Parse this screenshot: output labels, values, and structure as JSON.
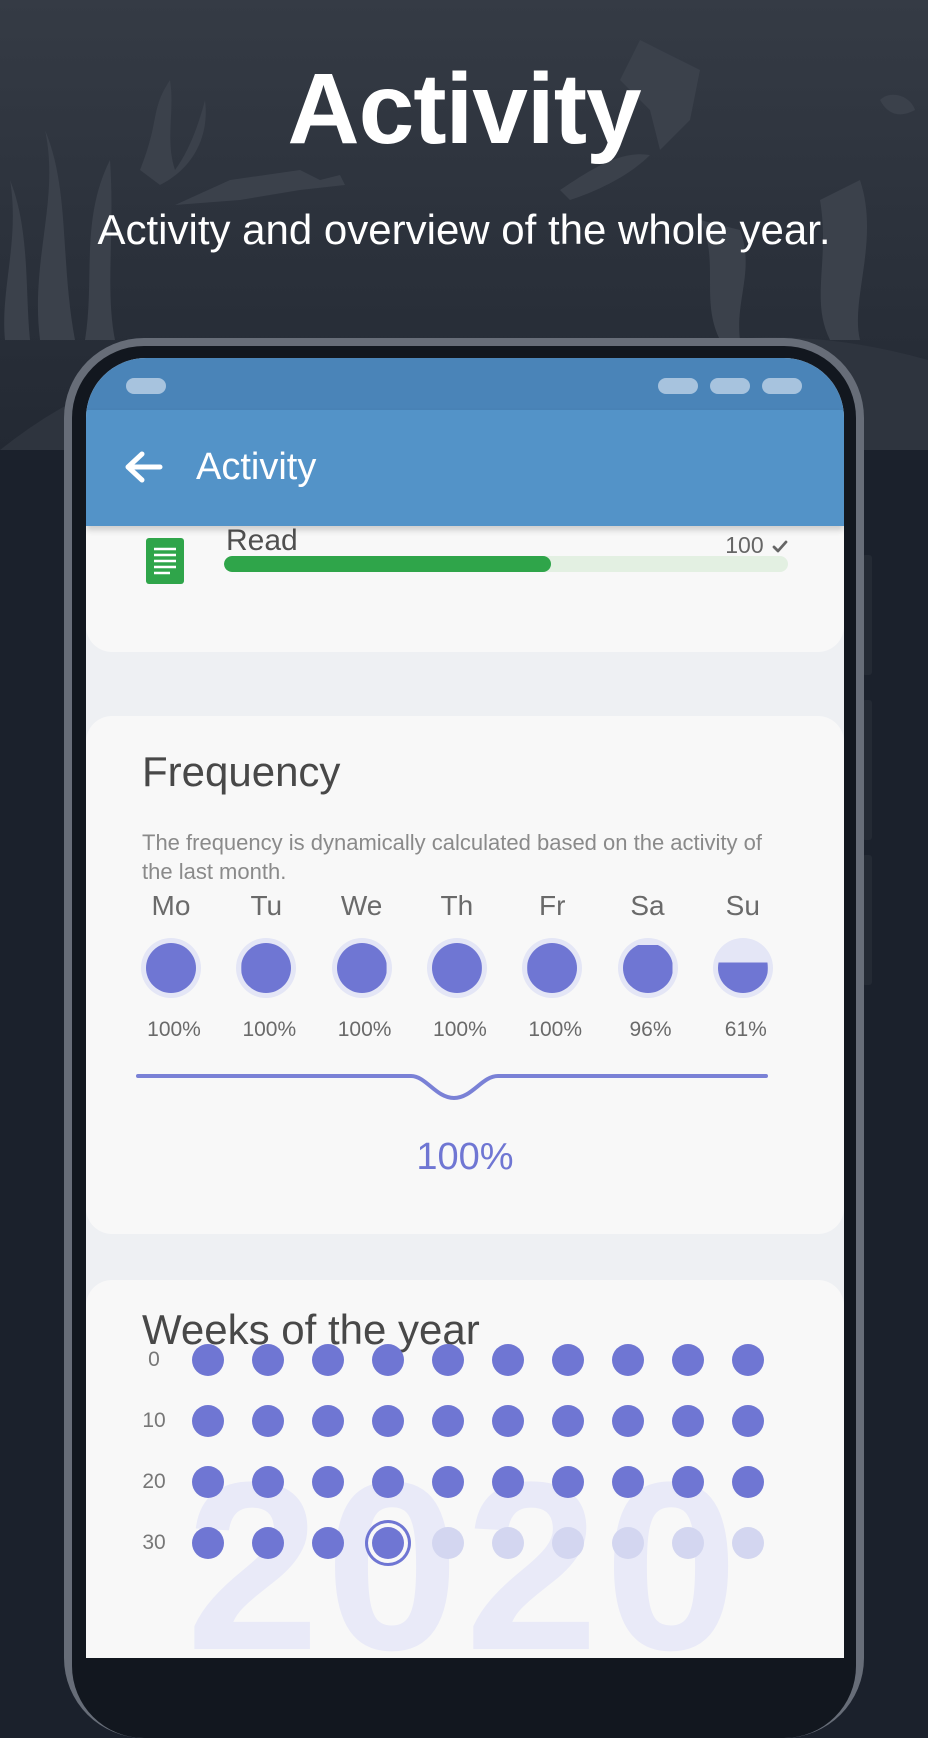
{
  "promo": {
    "title": "Activity",
    "subtitle": "Activity and overview of the whole year."
  },
  "appbar": {
    "title": "Activity",
    "back_icon": "arrow-left-icon"
  },
  "read": {
    "label": "Read",
    "count": "100",
    "check_icon": "check-icon",
    "doc_icon": "document-icon",
    "progress_fraction": 0.58,
    "color": "#2fa54a"
  },
  "frequency": {
    "title": "Frequency",
    "description": "The frequency is dynamically calculated based on the activity of the last month.",
    "days": [
      {
        "label": "Mo",
        "pct": "100%",
        "fill": 1.0
      },
      {
        "label": "Tu",
        "pct": "100%",
        "fill": 1.0
      },
      {
        "label": "We",
        "pct": "100%",
        "fill": 1.0
      },
      {
        "label": "Th",
        "pct": "100%",
        "fill": 1.0
      },
      {
        "label": "Fr",
        "pct": "100%",
        "fill": 1.0
      },
      {
        "label": "Sa",
        "pct": "96%",
        "fill": 0.96
      },
      {
        "label": "Su",
        "pct": "61%",
        "fill": 0.61
      }
    ],
    "overall": "100%"
  },
  "weeks": {
    "title": "Weeks of the year",
    "year": "2020",
    "row_labels": [
      "0",
      "10",
      "20",
      "30"
    ],
    "completed_weeks": 33,
    "current_week": 33,
    "accent": "#6f76d3"
  }
}
